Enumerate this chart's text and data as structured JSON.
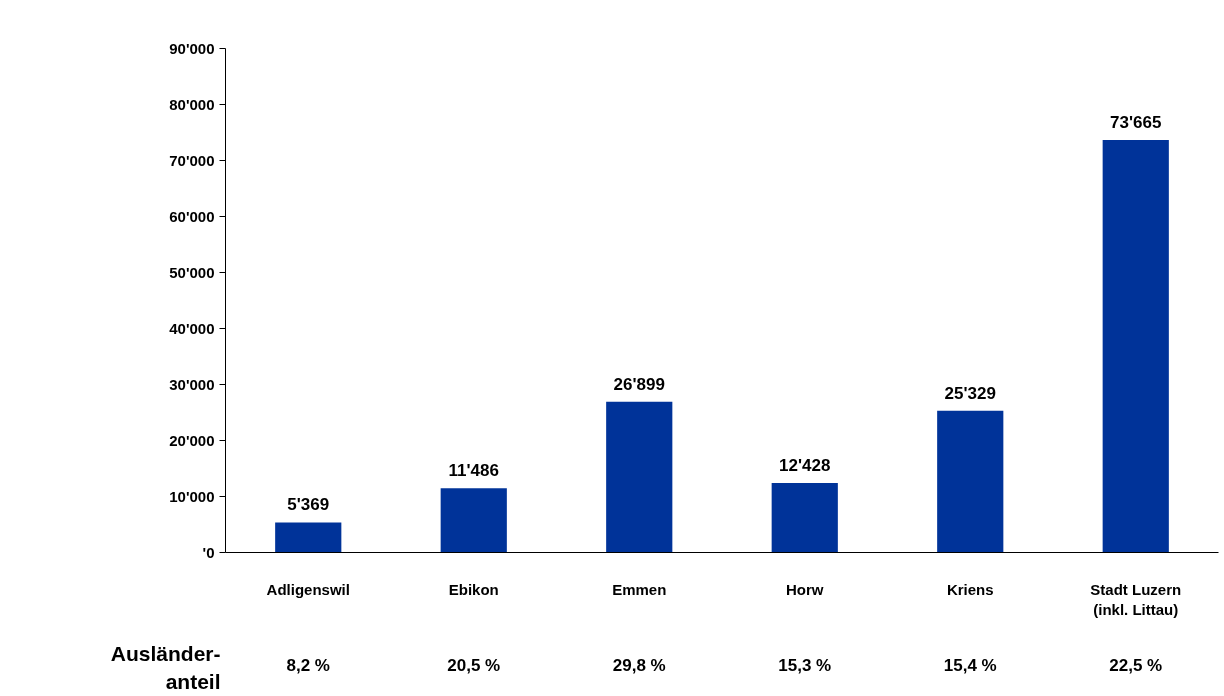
{
  "chart_data": {
    "type": "bar",
    "categories": [
      "Adligenswil",
      "Ebikon",
      "Emmen",
      "Horw",
      "Kriens",
      "Stadt Luzern\n(inkl. Littau)"
    ],
    "values": [
      5369,
      11486,
      26899,
      12428,
      25329,
      73665
    ],
    "color": "#003399",
    "value_labels": [
      "5'369",
      "11'486",
      "26'899",
      "12'428",
      "25'329",
      "73'665"
    ],
    "ylim": [
      0,
      90000
    ],
    "yticks": [
      {
        "value": 0,
        "label": "'0"
      },
      {
        "value": 10000,
        "label": "10'000"
      },
      {
        "value": 20000,
        "label": "20'000"
      },
      {
        "value": 30000,
        "label": "30'000"
      },
      {
        "value": 40000,
        "label": "40'000"
      },
      {
        "value": 50000,
        "label": "50'000"
      },
      {
        "value": 60000,
        "label": "60'000"
      },
      {
        "value": 70000,
        "label": "70'000"
      },
      {
        "value": 80000,
        "label": "80'000"
      },
      {
        "value": 90000,
        "label": "90'000"
      }
    ],
    "grid": false,
    "annotations": [
      "Ausländer-\nanteil",
      "8,2 %",
      "20,5 %",
      "29,8 %",
      "15,3 %",
      "15,4 %",
      "22,5 %"
    ]
  }
}
